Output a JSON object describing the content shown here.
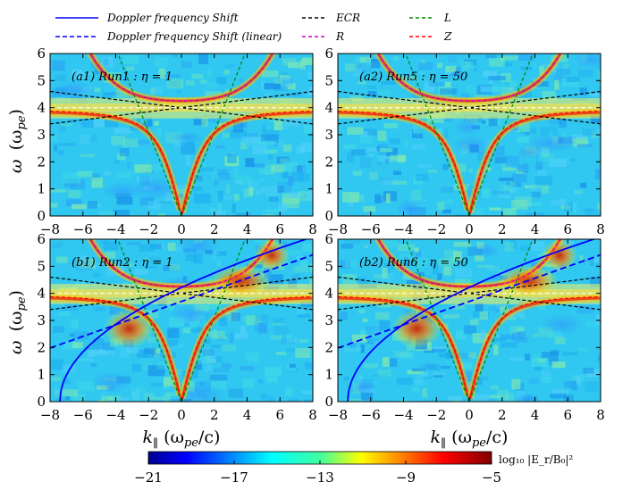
{
  "legend": [
    {
      "label": "Doppler frequency Shift",
      "color": "#0000ff",
      "dash": "solid"
    },
    {
      "label": "Doppler frequency Shift (linear)",
      "color": "#0000ff",
      "dash": "dashed"
    },
    {
      "label": "ECR",
      "color": "#000000",
      "dash": "dashed"
    },
    {
      "label": "R",
      "color": "#cc00cc",
      "dash": "dashed"
    },
    {
      "label": "L",
      "color": "#008800",
      "dash": "dashed"
    },
    {
      "label": "Z",
      "color": "#ff0000",
      "dash": "dashed"
    }
  ],
  "axes": {
    "xlabel_main": "k",
    "xlabel_sub": "∥",
    "xlabel_unit": "(ω",
    "xlabel_unit_sub": "pe",
    "xlabel_unit_tail": "/c)",
    "ylabel_main": "ω",
    "ylabel_unit": "(ω",
    "ylabel_unit_sub": "pe",
    "ylabel_unit_tail": ")"
  },
  "colorbar": {
    "label": "log₁₀ |E_r/B₀|²",
    "ticks": [
      "−21",
      "−17",
      "−13",
      "−9",
      "−5"
    ],
    "tick_values": [
      -21,
      -17,
      -13,
      -9,
      -5
    ],
    "range": [
      -21,
      -5
    ]
  },
  "chart_data": [
    {
      "type": "heatmap",
      "panel_label": "(a1) Run1 : η = 1",
      "xlim": [
        -8,
        8
      ],
      "ylim": [
        0,
        6
      ],
      "xticks": [
        "−8",
        "−6",
        "−4",
        "−2",
        "0",
        "2",
        "4",
        "6",
        "8"
      ],
      "yticks": [
        "0",
        "1",
        "2",
        "3",
        "4",
        "5",
        "6"
      ],
      "show_doppler": false,
      "show_xlabel": false,
      "show_ylabel": true
    },
    {
      "type": "heatmap",
      "panel_label": "(a2) Run5 : η = 50",
      "xlim": [
        -8,
        8
      ],
      "ylim": [
        0,
        6
      ],
      "xticks": [
        "−8",
        "−6",
        "−4",
        "−2",
        "0",
        "2",
        "4",
        "6",
        "8"
      ],
      "yticks": [
        "0",
        "1",
        "2",
        "3",
        "4",
        "5",
        "6"
      ],
      "show_doppler": false,
      "show_xlabel": false,
      "show_ylabel": false
    },
    {
      "type": "heatmap",
      "panel_label": "(b1) Run2 : η = 1",
      "xlim": [
        -8,
        8
      ],
      "ylim": [
        0,
        6
      ],
      "xticks": [
        "−8",
        "−6",
        "−4",
        "−2",
        "0",
        "2",
        "4",
        "6",
        "8"
      ],
      "yticks": [
        "0",
        "1",
        "2",
        "3",
        "4",
        "5",
        "6"
      ],
      "show_doppler": true,
      "show_xlabel": true,
      "show_ylabel": true
    },
    {
      "type": "heatmap",
      "panel_label": "(b2) Run6 : η = 50",
      "xlim": [
        -8,
        8
      ],
      "ylim": [
        0,
        6
      ],
      "xticks": [
        "−8",
        "−6",
        "−4",
        "−2",
        "0",
        "2",
        "4",
        "6",
        "8"
      ],
      "yticks": [
        "0",
        "1",
        "2",
        "3",
        "4",
        "5",
        "6"
      ],
      "show_doppler": true,
      "show_xlabel": true,
      "show_ylabel": false
    }
  ],
  "curves": {
    "ecr_intercept": 4.0,
    "ecr_slope": 0.075,
    "white_line_level": 4.0,
    "z_asymptote": 4.0,
    "doppler_curve_k0": -7.4,
    "doppler_linear_intercept": 3.7,
    "doppler_linear_slope": 0.215
  }
}
